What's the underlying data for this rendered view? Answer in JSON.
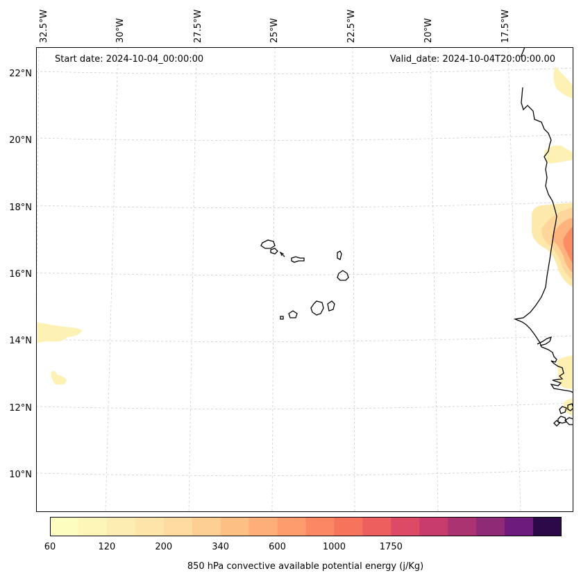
{
  "annotations": {
    "start_date": "Start date: 2024-10-04_00:00:00",
    "valid_date": "Valid_date: 2024-10-04T20:00:00.00"
  },
  "map": {
    "projection": "Lambert conformal",
    "extent": {
      "lon_min": -33.0,
      "lon_max": -16.2,
      "lat_min": 8.9,
      "lat_max": 22.8
    },
    "gridlines": "dashed light gray",
    "coastlines": "black",
    "longitude_labels": [
      "32.5°W",
      "30°W",
      "27.5°W",
      "25°W",
      "22.5°W",
      "20°W",
      "17.5°W"
    ],
    "latitude_labels": [
      "22°N",
      "20°N",
      "18°N",
      "16°N",
      "14°N",
      "12°N",
      "10°N"
    ],
    "features": [
      "Cape Verde islands",
      "West African coastline (Mauritania, Senegal, Gambia, Guinea-Bissau)"
    ]
  },
  "colorbar": {
    "label": "850 hPa convective available potential energy (j/Kg)",
    "tick_labels": [
      "60",
      "120",
      "200",
      "340",
      "600",
      "1000",
      "1750"
    ],
    "colors": [
      "#fcfdbf",
      "#fdf6b8",
      "#fdedb0",
      "#fde4a8",
      "#fedba0",
      "#fecf92",
      "#febf84",
      "#feae78",
      "#fd9c6c",
      "#fb8862",
      "#f6745c",
      "#ec5f5e",
      "#dc4a66",
      "#c83c6d",
      "#ac3371",
      "#8f2a77",
      "#6d1b7c",
      "#2c0a4a"
    ],
    "colormap": "magma_r"
  }
}
